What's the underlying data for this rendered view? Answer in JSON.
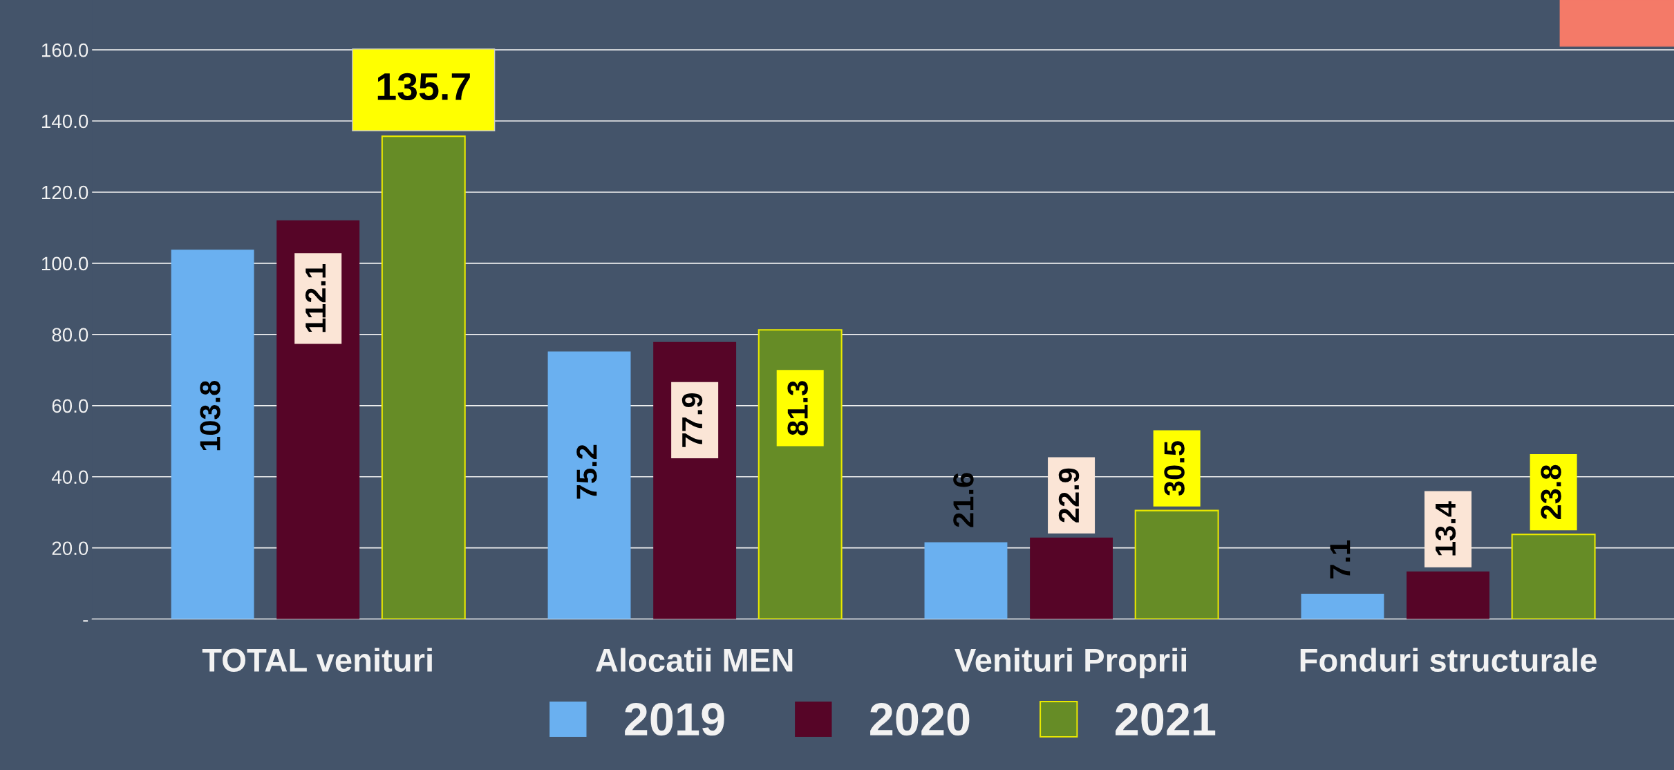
{
  "chart_data": {
    "type": "bar",
    "categories": [
      "TOTAL venituri",
      "Alocatii MEN",
      "Venituri Proprii",
      "Fonduri structurale"
    ],
    "series": [
      {
        "name": "2019",
        "color": "#6ab0f0",
        "values": [
          103.8,
          75.2,
          21.6,
          7.1
        ]
      },
      {
        "name": "2020",
        "color": "#560527",
        "values": [
          112.1,
          77.9,
          22.9,
          13.4
        ]
      },
      {
        "name": "2021",
        "color": "#668c26",
        "values": [
          135.7,
          81.3,
          30.5,
          23.8
        ]
      }
    ],
    "ylim": [
      0,
      174
    ],
    "yticks": [
      {
        "value": 0,
        "label": "-"
      },
      {
        "value": 20,
        "label": "20.0"
      },
      {
        "value": 40,
        "label": "40.0"
      },
      {
        "value": 60,
        "label": "60.0"
      },
      {
        "value": 80,
        "label": "80.0"
      },
      {
        "value": 100,
        "label": "100.0"
      },
      {
        "value": 120,
        "label": "120.0"
      },
      {
        "value": 140,
        "label": "140.0"
      },
      {
        "value": 160,
        "label": "160.0"
      }
    ],
    "grid": "y",
    "legend": "bottom",
    "data_labels": true
  }
}
